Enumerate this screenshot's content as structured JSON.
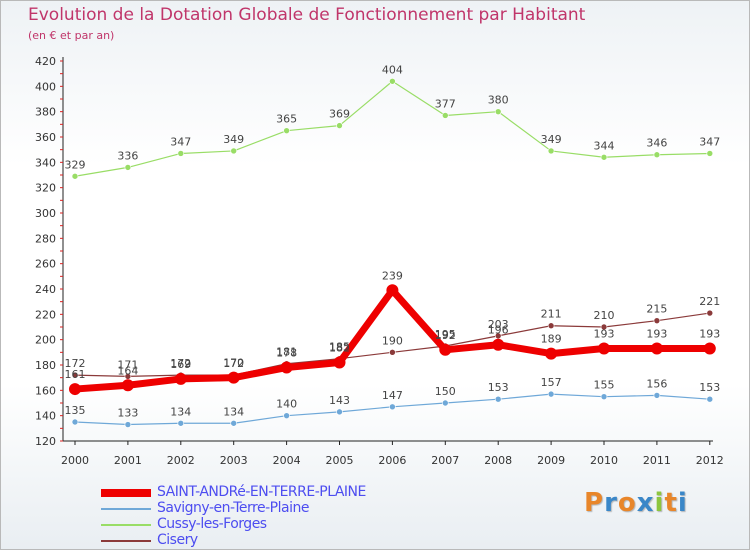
{
  "header": {
    "title": "Evolution de la Dotation Globale de Fonctionnement par Habitant",
    "subtitle": "(en € et par an)"
  },
  "brand": {
    "text": "Proxiti",
    "letter_colors": [
      "#e8862a",
      "#3a87c8",
      "#e8862a",
      "#3a87c8",
      "#8dc63f",
      "#e8862a",
      "#3a87c8"
    ]
  },
  "chart_data": {
    "type": "line",
    "title": "Evolution de la Dotation Globale de Fonctionnement par Habitant",
    "subtitle": "(en € et par an)",
    "xlabel": "",
    "ylabel": "",
    "ylim": [
      120,
      420
    ],
    "yticks": [
      120,
      140,
      160,
      180,
      200,
      220,
      240,
      260,
      280,
      300,
      320,
      340,
      360,
      380,
      400,
      420
    ],
    "grid": false,
    "legend_position": "bottom-left",
    "x": [
      "2000",
      "2001",
      "2002",
      "2003",
      "2004",
      "2005",
      "2006",
      "2007",
      "2008",
      "2009",
      "2010",
      "2011",
      "2012"
    ],
    "series": [
      {
        "name": "SAINT-ANDRé-EN-TERRE-PLAINE",
        "color": "#ee0000",
        "style": "thick",
        "values": [
          161,
          164,
          169,
          170,
          178,
          182,
          239,
          192,
          196,
          189,
          193,
          193,
          193
        ]
      },
      {
        "name": "Savigny-en-Terre-Plaine",
        "color": "#6fa8d8",
        "style": "thin",
        "values": [
          135,
          133,
          134,
          134,
          140,
          143,
          147,
          150,
          153,
          157,
          155,
          156,
          153
        ]
      },
      {
        "name": "Cussy-les-Forges",
        "color": "#99dd66",
        "style": "thin",
        "values": [
          329,
          336,
          347,
          349,
          365,
          369,
          404,
          377,
          380,
          349,
          344,
          346,
          347
        ]
      },
      {
        "name": "Cisery",
        "color": "#8b3a3a",
        "style": "thin",
        "values": [
          172,
          171,
          172,
          172,
          181,
          185,
          190,
          195,
          203,
          211,
          210,
          215,
          221
        ]
      }
    ]
  }
}
